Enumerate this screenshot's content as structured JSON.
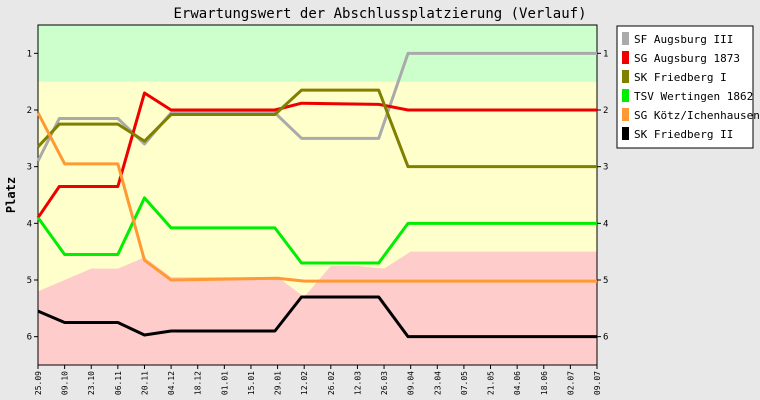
{
  "chart_data": {
    "type": "line",
    "title": "Erwartungswert der Abschlussplatzierung (Verlauf)",
    "ylabel": "Platz",
    "xlabel": "",
    "ylim": [
      0.5,
      6.5
    ],
    "y_reversed": true,
    "yticks": [
      1,
      2,
      3,
      4,
      5,
      6
    ],
    "categories": [
      "25.09",
      "09.10",
      "23.10",
      "06.11",
      "20.11",
      "04.12",
      "18.12",
      "01.01",
      "15.01",
      "29.01",
      "12.02",
      "26.02",
      "12.03",
      "26.03",
      "09.04",
      "23.04",
      "07.05",
      "21.05",
      "04.06",
      "18.06",
      "02.07",
      "09.07"
    ],
    "bands": [
      {
        "name": "green",
        "color": "#ccffcc",
        "from": 0.5,
        "to": 1.5
      },
      {
        "name": "yellow",
        "color": "#ffffcc",
        "from": 1.5,
        "to": 6.5
      }
    ],
    "red_zone": {
      "color": "#ffcccc",
      "upper_edge": [
        5.2,
        5.0,
        4.8,
        4.8,
        4.6,
        4.95,
        4.95,
        4.95,
        4.95,
        4.95,
        5.3,
        4.75,
        4.75,
        4.8,
        4.5,
        4.5,
        4.5,
        4.5,
        4.5,
        4.5,
        4.5,
        4.5
      ]
    },
    "series": [
      {
        "name": "SF Augsburg III",
        "color": "#aaaaaa",
        "points": [
          [
            0,
            2.9
          ],
          [
            0.8,
            2.15
          ],
          [
            3,
            2.15
          ],
          [
            4,
            2.6
          ],
          [
            5,
            2.05
          ],
          [
            8.9,
            2.05
          ],
          [
            9.9,
            2.5
          ],
          [
            12.8,
            2.5
          ],
          [
            13.9,
            1.0
          ],
          [
            21,
            1.0
          ]
        ]
      },
      {
        "name": "SG Augsburg 1873",
        "color": "#ee0000",
        "points": [
          [
            0,
            3.9
          ],
          [
            0.8,
            3.35
          ],
          [
            3,
            3.35
          ],
          [
            4,
            1.7
          ],
          [
            5,
            2.0
          ],
          [
            8.9,
            2.0
          ],
          [
            9.9,
            1.88
          ],
          [
            12.8,
            1.9
          ],
          [
            13.9,
            2.0
          ],
          [
            21,
            2.0
          ]
        ]
      },
      {
        "name": "SK Friedberg I",
        "color": "#808000",
        "points": [
          [
            0,
            2.65
          ],
          [
            0.8,
            2.25
          ],
          [
            3,
            2.25
          ],
          [
            4,
            2.55
          ],
          [
            5,
            2.08
          ],
          [
            8.9,
            2.08
          ],
          [
            9.9,
            1.65
          ],
          [
            12.8,
            1.65
          ],
          [
            13.9,
            3.0
          ],
          [
            21,
            3.0
          ]
        ]
      },
      {
        "name": "TSV Wertingen 1862",
        "color": "#00ee00",
        "points": [
          [
            0,
            3.9
          ],
          [
            1,
            4.55
          ],
          [
            3,
            4.55
          ],
          [
            4,
            3.55
          ],
          [
            5,
            4.08
          ],
          [
            8.9,
            4.08
          ],
          [
            9.9,
            4.7
          ],
          [
            12.8,
            4.7
          ],
          [
            13.9,
            4.0
          ],
          [
            21,
            4.0
          ]
        ]
      },
      {
        "name": "SG Kötz/Ichenhausen",
        "color": "#ff9933",
        "points": [
          [
            0,
            2.05
          ],
          [
            1,
            2.95
          ],
          [
            3,
            2.95
          ],
          [
            4,
            4.65
          ],
          [
            5,
            5.0
          ],
          [
            9,
            4.97
          ],
          [
            10,
            5.02
          ],
          [
            21,
            5.02
          ]
        ]
      },
      {
        "name": "SK Friedberg II",
        "color": "#000000",
        "points": [
          [
            0,
            5.55
          ],
          [
            1,
            5.75
          ],
          [
            3,
            5.75
          ],
          [
            4,
            5.97
          ],
          [
            5,
            5.9
          ],
          [
            8.9,
            5.9
          ],
          [
            9.9,
            5.3
          ],
          [
            12.8,
            5.3
          ],
          [
            13.9,
            6.0
          ],
          [
            21,
            6.0
          ]
        ]
      }
    ]
  }
}
